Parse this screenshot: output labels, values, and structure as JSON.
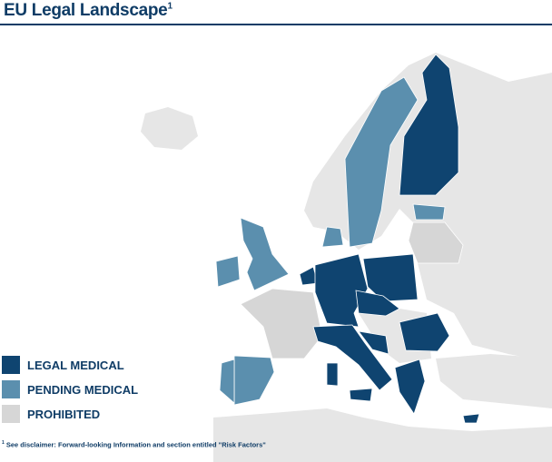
{
  "title": "EU Legal Landscape",
  "title_note": "1",
  "legend": [
    {
      "label": "LEGAL MEDICAL",
      "color": "#0f4470"
    },
    {
      "label": "PENDING MEDICAL",
      "color": "#5b8fae"
    },
    {
      "label": "PROHIBITED",
      "color": "#d6d6d6"
    }
  ],
  "footnote": {
    "marker": "1",
    "text": "See disclaimer: Forward-looking Information and section entitled \"Risk Factors\""
  }
}
